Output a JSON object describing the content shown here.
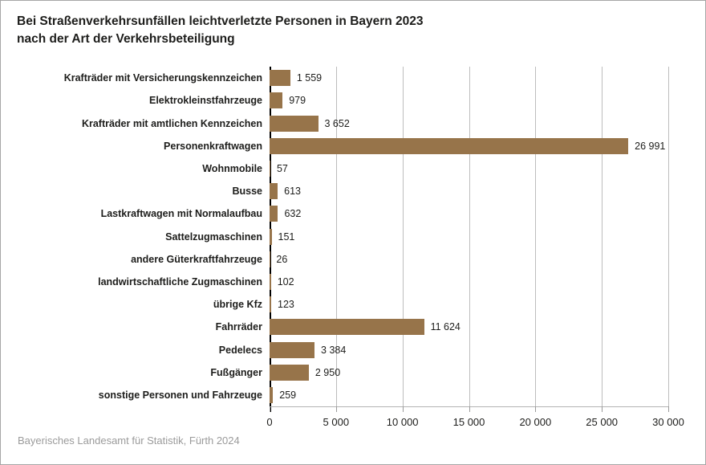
{
  "title": {
    "line1": "Bei Straßenverkehrsunfällen leichtverletzte Personen in Bayern 2023",
    "line2": "nach der Art der Verkehrsbeteiligung"
  },
  "source": "Bayerisches Landesamt für Statistik, Fürth 2024",
  "colors": {
    "bar": "#97744a",
    "grid": "#bdbdbd",
    "zero_axis": "#000000",
    "axis_line": "#b3b3b3",
    "text": "#1d1d1b",
    "source_text": "#9b9b9b"
  },
  "chart_data": {
    "type": "bar",
    "orientation": "horizontal",
    "title": "Bei Straßenverkehrsunfällen leichtverletzte Personen in Bayern 2023 nach der Art der Verkehrsbeteiligung",
    "categories": [
      "Krafträder mit Versicherungskennzeichen",
      "Elektrokleinstfahrzeuge",
      "Krafträder mit amtlichen Kennzeichen",
      "Personenkraftwagen",
      "Wohnmobile",
      "Busse",
      "Lastkraftwagen mit Normalaufbau",
      "Sattelzugmaschinen",
      "andere Güterkraftfahrzeuge",
      "landwirtschaftliche Zugmaschinen",
      "übrige Kfz",
      "Fahrräder",
      "Pedelecs",
      "Fußgänger",
      "sonstige Personen und Fahrzeuge"
    ],
    "values": [
      1559,
      979,
      3652,
      26991,
      57,
      613,
      632,
      151,
      26,
      102,
      123,
      11624,
      3384,
      2950,
      259
    ],
    "value_labels": [
      "1 559",
      "979",
      "3 652",
      "26 991",
      "57",
      "613",
      "632",
      "151",
      "26",
      "102",
      "123",
      "11 624",
      "3 384",
      "2 950",
      "259"
    ],
    "xlabel": "",
    "ylabel": "",
    "xlim": [
      0,
      30000
    ],
    "x_ticks": [
      0,
      5000,
      10000,
      15000,
      20000,
      25000,
      30000
    ],
    "x_tick_labels": [
      "0",
      "5 000",
      "10 000",
      "15 000",
      "20 000",
      "25 000",
      "30 000"
    ],
    "grid": true,
    "legend": false
  }
}
